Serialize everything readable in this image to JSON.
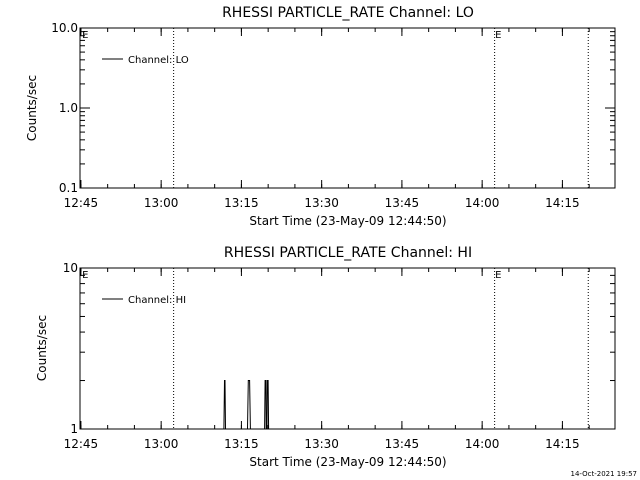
{
  "footer": {
    "timestamp": "14-Oct-2021 19:57"
  },
  "chart_data": [
    {
      "type": "line",
      "title": "RHESSI PARTICLE_RATE Channel: LO",
      "xlabel": "Start Time (23-May-09 12:44:50)",
      "ylabel": "Counts/sec",
      "x_tick_labels": [
        "12:45",
        "13:00",
        "13:15",
        "13:30",
        "13:45",
        "14:00",
        "14:15"
      ],
      "x_ticks_min": [
        0.17,
        15.17,
        30.17,
        45.17,
        60.17,
        75.17,
        90.17
      ],
      "xlim_min": [
        0,
        100
      ],
      "y_scale": "log",
      "ylim": [
        0.1,
        10.0
      ],
      "y_tick_labels": [
        "0.1",
        "1.0",
        "10.0"
      ],
      "y_ticks": [
        0.1,
        1.0,
        10.0
      ],
      "legend": {
        "label": "Channel: LO",
        "position": "top-left"
      },
      "vlines_min": [
        17.5,
        77.5,
        95.0
      ],
      "markers": [
        {
          "label": "E",
          "x_min": 0.2
        },
        {
          "label": "E",
          "x_min": 77.4
        }
      ],
      "series": [
        {
          "name": "Channel: LO",
          "points": []
        }
      ]
    },
    {
      "type": "line",
      "title": "RHESSI PARTICLE_RATE Channel: HI",
      "xlabel": "Start Time (23-May-09 12:44:50)",
      "ylabel": "Counts/sec",
      "x_tick_labels": [
        "12:45",
        "13:00",
        "13:15",
        "13:30",
        "13:45",
        "14:00",
        "14:15"
      ],
      "x_ticks_min": [
        0.17,
        15.17,
        30.17,
        45.17,
        60.17,
        75.17,
        90.17
      ],
      "xlim_min": [
        0,
        100
      ],
      "y_scale": "log",
      "ylim": [
        1,
        10
      ],
      "y_tick_labels": [
        "1",
        "10"
      ],
      "y_ticks": [
        1,
        10
      ],
      "legend": {
        "label": "Channel: HI",
        "position": "top-left"
      },
      "vlines_min": [
        17.5,
        77.5,
        95.0
      ],
      "markers": [
        {
          "label": "E",
          "x_min": 0.2
        },
        {
          "label": "E",
          "x_min": 77.4
        }
      ],
      "series": [
        {
          "name": "Channel: HI",
          "points": [
            [
              26.9,
              1
            ],
            [
              27.0,
              2
            ],
            [
              27.1,
              2
            ],
            [
              27.2,
              1
            ],
            [
              31.3,
              1
            ],
            [
              31.45,
              2
            ],
            [
              31.7,
              2
            ],
            [
              31.85,
              1
            ],
            [
              34.5,
              1
            ],
            [
              34.6,
              2
            ],
            [
              34.75,
              2
            ],
            [
              34.8,
              1
            ],
            [
              34.95,
              1
            ],
            [
              35.0,
              2
            ],
            [
              35.15,
              2
            ],
            [
              35.25,
              1
            ]
          ]
        }
      ]
    }
  ]
}
